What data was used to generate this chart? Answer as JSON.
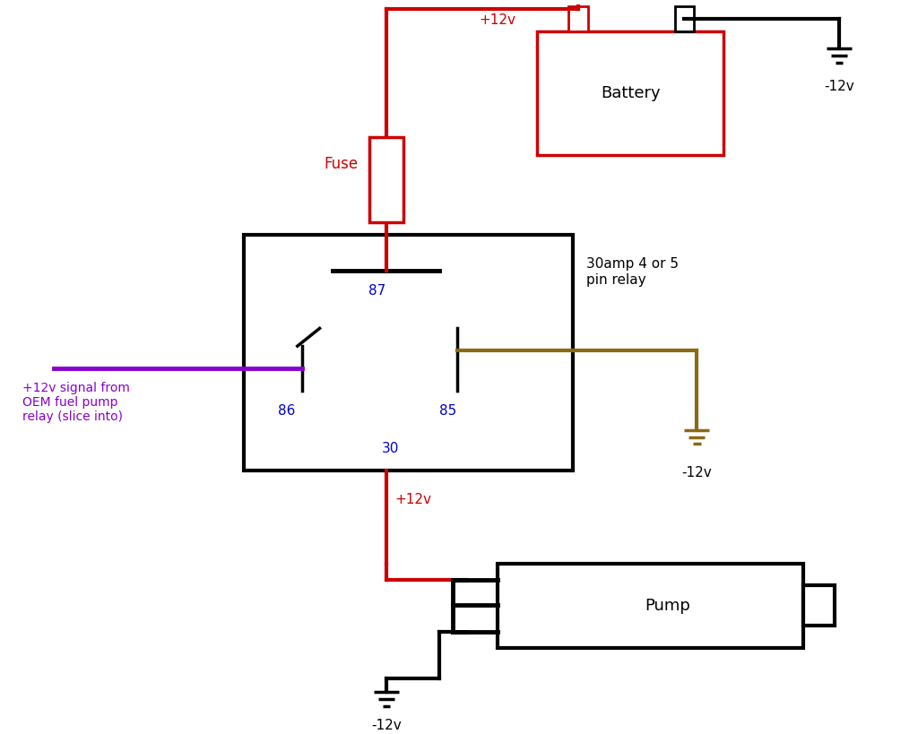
{
  "bg_color": "#ffffff",
  "wire_red": "#cc0000",
  "wire_black": "#000000",
  "wire_purple": "#8800cc",
  "wire_brown": "#8B6914",
  "label_blue": "#0000cc",
  "label_red": "#cc0000",
  "label_black": "#000000",
  "fig_width": 10.24,
  "fig_height": 8.19,
  "dpi": 100,
  "pump_label": "Pump",
  "battery_label": "Battery",
  "fuse_label": "Fuse",
  "relay_label": "30amp 4 or 5\npin relay",
  "signal_label": "+12v signal from\nOEM fuel pump\nrelay (slice into)",
  "plus12v_top": "+12v",
  "plus12v_bottom": "+12v",
  "minus12v_top": "-12v",
  "minus12v_right": "-12v",
  "minus12v_pump": "-12v"
}
